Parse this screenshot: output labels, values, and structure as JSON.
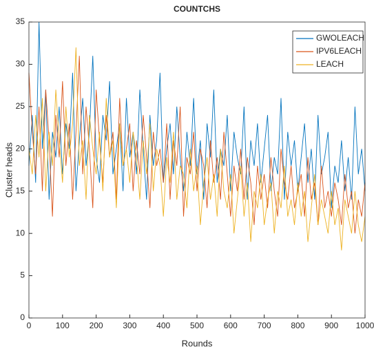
{
  "chart_data": {
    "type": "line",
    "title": "COUNTCHS",
    "xlabel": "Rounds",
    "ylabel": "Cluster heads",
    "x": [
      0,
      10,
      20,
      30,
      40,
      50,
      60,
      70,
      80,
      90,
      100,
      110,
      120,
      130,
      140,
      150,
      160,
      170,
      180,
      190,
      200,
      210,
      220,
      230,
      240,
      250,
      260,
      270,
      280,
      290,
      300,
      310,
      320,
      330,
      340,
      350,
      360,
      370,
      380,
      390,
      400,
      410,
      420,
      430,
      440,
      450,
      460,
      470,
      480,
      490,
      500,
      510,
      520,
      530,
      540,
      550,
      560,
      570,
      580,
      590,
      600,
      610,
      620,
      630,
      640,
      650,
      660,
      670,
      680,
      690,
      700,
      710,
      720,
      730,
      740,
      750,
      760,
      770,
      780,
      790,
      800,
      810,
      820,
      830,
      840,
      850,
      860,
      870,
      880,
      890,
      900,
      910,
      920,
      930,
      940,
      950,
      960,
      970,
      980,
      990,
      1000
    ],
    "series": [
      {
        "name": "GWOLEACH",
        "color": "#0072BD",
        "values": [
          18,
          24,
          16,
          35,
          20,
          27,
          14,
          22,
          19,
          25,
          17,
          23,
          20,
          29,
          15,
          21,
          26,
          18,
          22,
          31,
          19,
          16,
          24,
          21,
          28,
          17,
          20,
          23,
          15,
          26,
          19,
          22,
          17,
          27,
          20,
          14,
          24,
          18,
          21,
          29,
          16,
          20,
          23,
          17,
          25,
          19,
          15,
          22,
          18,
          26,
          17,
          21,
          14,
          23,
          19,
          27,
          16,
          20,
          18,
          24,
          15,
          22,
          19,
          17,
          25,
          14,
          21,
          18,
          23,
          16,
          20,
          24,
          15,
          19,
          17,
          26,
          14,
          22,
          18,
          21,
          15,
          19,
          23,
          16,
          20,
          14,
          24,
          17,
          19,
          22,
          13,
          18,
          16,
          21,
          15,
          19,
          14,
          25,
          17,
          20,
          15
        ]
      },
      {
        "name": "IPV6LEACH",
        "color": "#D95319",
        "values": [
          29,
          22,
          17,
          25,
          15,
          27,
          21,
          12,
          24,
          19,
          28,
          18,
          23,
          14,
          22,
          31,
          17,
          25,
          20,
          13,
          27,
          21,
          16,
          24,
          19,
          22,
          14,
          26,
          18,
          20,
          23,
          15,
          21,
          17,
          24,
          19,
          13,
          22,
          18,
          20,
          16,
          23,
          14,
          21,
          18,
          25,
          12,
          19,
          17,
          22,
          15,
          20,
          18,
          13,
          21,
          16,
          19,
          14,
          22,
          17,
          12,
          18,
          15,
          20,
          14,
          19,
          16,
          11,
          18,
          14,
          17,
          13,
          19,
          15,
          12,
          20,
          16,
          14,
          18,
          13,
          15,
          17,
          12,
          19,
          14,
          16,
          11,
          18,
          13,
          15,
          12,
          16,
          14,
          11,
          17,
          13,
          15,
          10,
          14,
          12,
          16
        ]
      },
      {
        "name": "LEACH",
        "color": "#EDB120",
        "values": [
          20,
          17,
          24,
          19,
          26,
          15,
          22,
          18,
          27,
          21,
          16,
          25,
          19,
          23,
          32,
          18,
          21,
          14,
          24,
          20,
          17,
          22,
          15,
          26,
          19,
          21,
          13,
          23,
          18,
          20,
          16,
          22,
          19,
          14,
          21,
          17,
          23,
          15,
          20,
          18,
          12,
          19,
          16,
          22,
          14,
          18,
          17,
          13,
          20,
          15,
          18,
          11,
          16,
          19,
          14,
          17,
          12,
          20,
          15,
          13,
          17,
          10,
          14,
          18,
          12,
          16,
          9,
          15,
          13,
          17,
          11,
          14,
          16,
          10,
          15,
          13,
          18,
          12,
          14,
          11,
          16,
          12,
          15,
          9,
          13,
          17,
          11,
          14,
          12,
          10,
          15,
          11,
          13,
          8,
          14,
          12,
          10,
          15,
          11,
          9,
          12
        ]
      }
    ],
    "xlim": [
      0,
      1000
    ],
    "xticks": [
      0,
      100,
      200,
      300,
      400,
      500,
      600,
      700,
      800,
      900,
      1000
    ],
    "ylim": [
      0,
      35
    ],
    "yticks": [
      0,
      5,
      10,
      15,
      20,
      25,
      30,
      35
    ],
    "legend": "top-right"
  }
}
